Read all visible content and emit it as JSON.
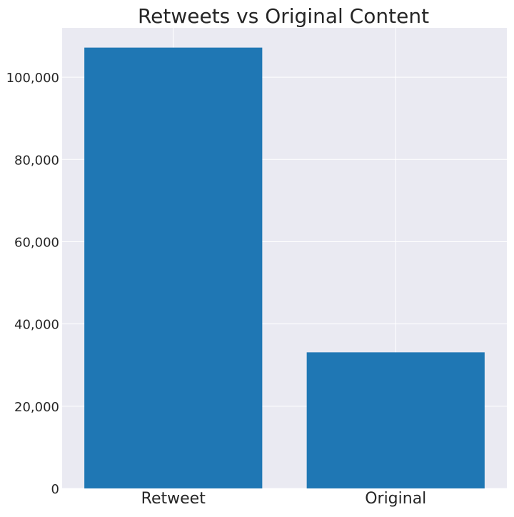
{
  "chart_data": {
    "type": "bar",
    "title": "Retweets vs Original Content",
    "xlabel": "",
    "ylabel": "",
    "categories": [
      "Retweet",
      "Original"
    ],
    "values": [
      107200,
      33100
    ],
    "ylim": [
      0,
      112000
    ],
    "yticks": [
      0,
      20000,
      40000,
      60000,
      80000,
      100000
    ],
    "ytick_labels": [
      "0",
      "20,000",
      "40,000",
      "60,000",
      "80,000",
      "100,000"
    ],
    "grid": true,
    "legend": "none",
    "colors": {
      "bar": "#1f77b4",
      "plot_background": "#eaeaf2",
      "grid": "#ffffff",
      "text": "#262626"
    }
  }
}
